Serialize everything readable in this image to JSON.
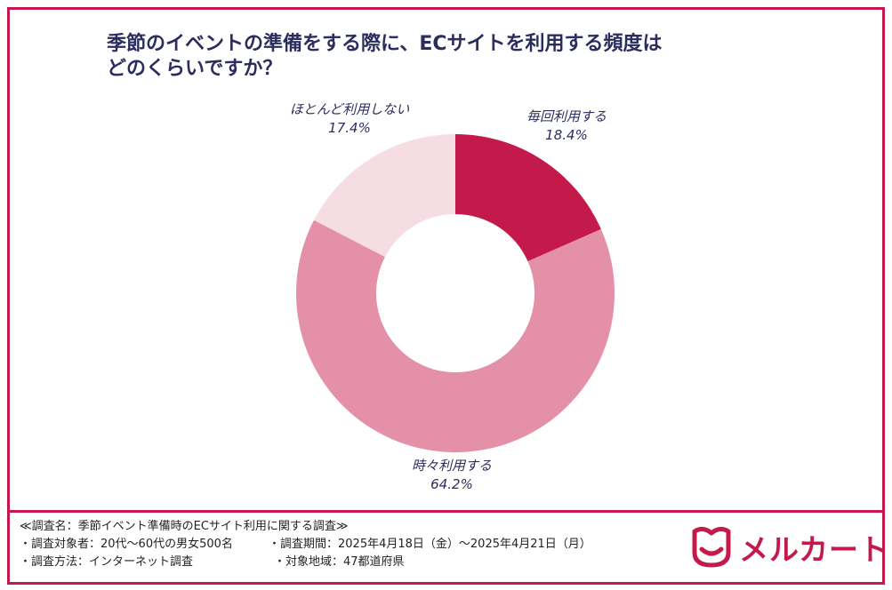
{
  "title": {
    "line1": "季節のイベントの準備をする際に、ECサイトを利用する頻度は",
    "line2": "どのくらいですか？"
  },
  "chart_data": {
    "type": "pie",
    "title": "季節のイベントの準備をする際に、ECサイトを利用する頻度はどのくらいですか？",
    "categories": [
      "毎回利用する",
      "時々利用する",
      "ほとんど利用しない"
    ],
    "values": [
      18.4,
      64.2,
      17.4
    ],
    "value_labels": [
      "18.4%",
      "64.2%",
      "17.4%"
    ],
    "colors": [
      "#c4194b",
      "#e490a8",
      "#f6dce3"
    ],
    "donut": true
  },
  "notes": {
    "survey_name": "≪調査名：季節イベント準備時のECサイト利用に関する調査≫",
    "target": "・調査対象者：20代〜60代の男女500名",
    "period": "・調査期間：2025年4月18日（金）〜2025年4月21日（月）",
    "method": "・調査方法：インターネット調査",
    "region": "・対象地域：47都道府県"
  },
  "logo": {
    "text": "メルカート",
    "icon": "mercart-logo-icon",
    "color": "#c4194b"
  },
  "colors": {
    "accent": "#c4194b",
    "title": "#2b2d5e"
  }
}
